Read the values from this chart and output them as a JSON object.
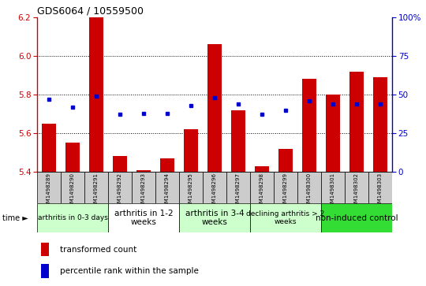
{
  "title": "GDS6064 / 10559500",
  "samples": [
    "GSM1498289",
    "GSM1498290",
    "GSM1498291",
    "GSM1498292",
    "GSM1498293",
    "GSM1498294",
    "GSM1498295",
    "GSM1498296",
    "GSM1498297",
    "GSM1498298",
    "GSM1498299",
    "GSM1498300",
    "GSM1498301",
    "GSM1498302",
    "GSM1498303"
  ],
  "transformed_count": [
    5.65,
    5.55,
    6.2,
    5.48,
    5.41,
    5.47,
    5.62,
    6.06,
    5.72,
    5.43,
    5.52,
    5.88,
    5.8,
    5.92,
    5.89
  ],
  "percentile_rank": [
    47,
    42,
    49,
    37,
    38,
    38,
    43,
    48,
    44,
    37,
    40,
    46,
    44,
    44,
    44
  ],
  "y_min": 5.4,
  "y_max": 6.2,
  "y_ticks_left": [
    5.4,
    5.6,
    5.8,
    6.0,
    6.2
  ],
  "y_ticks_right": [
    0,
    25,
    50,
    75,
    100
  ],
  "bar_color": "#cc0000",
  "dot_color": "#0000cc",
  "groups": [
    {
      "label": "arthritis in 0-3 days",
      "start": 0,
      "end": 3,
      "color": "#ccffcc",
      "fontsize": 6.5
    },
    {
      "label": "arthritis in 1-2\nweeks",
      "start": 3,
      "end": 6,
      "color": "#ffffff",
      "fontsize": 7.5
    },
    {
      "label": "arthritis in 3-4\nweeks",
      "start": 6,
      "end": 9,
      "color": "#ccffcc",
      "fontsize": 7.5
    },
    {
      "label": "declining arthritis > 2\nweeks",
      "start": 9,
      "end": 12,
      "color": "#ccffcc",
      "fontsize": 6.5
    },
    {
      "label": "non-induced control",
      "start": 12,
      "end": 15,
      "color": "#33dd33",
      "fontsize": 7.5
    }
  ],
  "legend_tc": "transformed count",
  "legend_pr": "percentile rank within the sample",
  "time_label": "time ►",
  "sample_box_color": "#cccccc",
  "bg_color": "#ffffff"
}
